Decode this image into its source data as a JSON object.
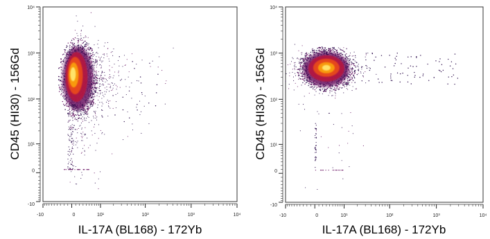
{
  "chart_data": [
    {
      "type": "scatter",
      "subtype": "flow-cytometry density plot",
      "xlabel": "IL-17A (BL168) - 172Yb",
      "ylabel": "CD45 (HI30) - 156Gd",
      "x_scale": "arcsinh (-10 to 10^4)",
      "y_scale": "arcsinh (-10 to 10^4)",
      "xlim": [
        -10,
        10000
      ],
      "ylim": [
        -10,
        10000
      ],
      "x_ticks": [
        "-10",
        "0",
        "10¹",
        "10²",
        "10³",
        "10⁴"
      ],
      "y_ticks": [
        "-10",
        "0",
        "10¹",
        "10²",
        "10³",
        "10⁴"
      ],
      "grid": false,
      "legend": "none",
      "colormap": [
        "#2a0a4a",
        "#6a1464",
        "#b5163f",
        "#e84a1a",
        "#f89a0c",
        "#ffe36a"
      ],
      "population": {
        "dense_core": {
          "x_center": 0.5,
          "y_center": 300,
          "x_spread": "-10 to 5",
          "y_spread": "50 to 1000"
        },
        "tail": {
          "x_max": 200,
          "y_range": [
            30,
            900
          ]
        },
        "floor_events": {
          "y": 0.8,
          "x_range": [
            -2,
            5
          ]
        }
      }
    },
    {
      "type": "scatter",
      "subtype": "flow-cytometry density plot",
      "xlabel": "IL-17A (BL168) - 172Yb",
      "ylabel": "CD45 (HI30) - 156Gd",
      "x_scale": "arcsinh (-10 to 10^4)",
      "y_scale": "arcsinh (-10 to 10^4)",
      "xlim": [
        -10,
        10000
      ],
      "ylim": [
        -10,
        10000
      ],
      "x_ticks": [
        "-10",
        "0",
        "10¹",
        "10²",
        "10³",
        "10⁴"
      ],
      "y_ticks": [
        "-10",
        "0",
        "10¹",
        "10²",
        "10³",
        "10⁴"
      ],
      "grid": false,
      "legend": "none",
      "colormap": [
        "#2a0a4a",
        "#6a1464",
        "#b5163f",
        "#e84a1a",
        "#f89a0c",
        "#ffe36a"
      ],
      "population": {
        "dense_core": {
          "x_center": 3,
          "y_center": 450,
          "x_spread": "0 to 10",
          "y_spread": "150 to 1200"
        },
        "tail": {
          "x_max": 3000,
          "y_range": [
            200,
            1000
          ]
        },
        "floor_events": {
          "y": 0.8,
          "x_range": [
            0,
            10
          ]
        }
      }
    }
  ]
}
